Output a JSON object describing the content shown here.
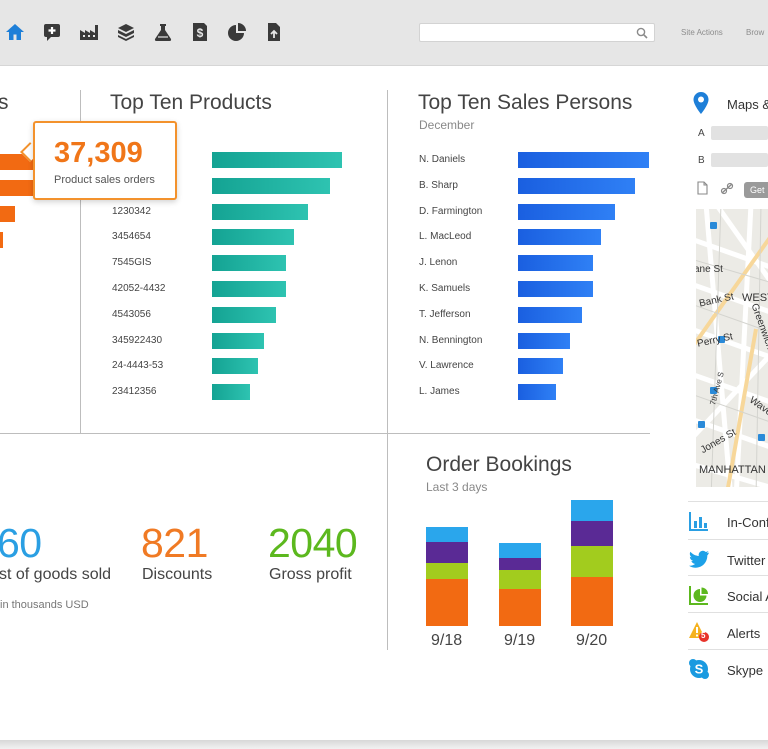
{
  "toolbar": {
    "icons": [
      "home-icon",
      "add-comment-icon",
      "factory-icon",
      "box-icon",
      "flask-icon",
      "dollar-doc-icon",
      "pie-chart-icon",
      "upload-doc-icon"
    ],
    "search_placeholder": "",
    "links": {
      "site_actions": "Site Actions",
      "browse": "Brow"
    },
    "colors": {
      "home_icon": "#1e7fd8",
      "icon": "#3a3a3a",
      "bar_bg": "#e6e6e6"
    }
  },
  "left_panel": {
    "title_fragment": "s",
    "callout": {
      "value": "37,309",
      "label": "Product sales orders"
    },
    "bars": [
      0.85,
      0.65,
      0.35,
      0.08
    ],
    "color": "#f26a12"
  },
  "top_products": {
    "title": "Top Ten Products",
    "rows": [
      {
        "label": "",
        "value": 100
      },
      {
        "label": "",
        "value": 91
      },
      {
        "label": "1230342",
        "value": 74
      },
      {
        "label": "3454654",
        "value": 63
      },
      {
        "label": "7545GIS",
        "value": 57
      },
      {
        "label": "42052-4432",
        "value": 57
      },
      {
        "label": "4543056",
        "value": 49
      },
      {
        "label": "345922430",
        "value": 40
      },
      {
        "label": "24-4443-53",
        "value": 35
      },
      {
        "label": "23412356",
        "value": 29
      }
    ]
  },
  "top_sales": {
    "title": "Top Ten Sales Persons",
    "subtitle": "December",
    "rows": [
      {
        "label": "N. Daniels",
        "value": 100
      },
      {
        "label": "B. Sharp",
        "value": 89
      },
      {
        "label": "D. Farmington",
        "value": 74
      },
      {
        "label": "L. MacLeod",
        "value": 63
      },
      {
        "label": "J. Lenon",
        "value": 57
      },
      {
        "label": "K. Samuels",
        "value": 57
      },
      {
        "label": "T. Jefferson",
        "value": 49
      },
      {
        "label": "N. Bennington",
        "value": 40
      },
      {
        "label": "V. Lawrence",
        "value": 34
      },
      {
        "label": "L. James",
        "value": 29
      }
    ]
  },
  "kpis": {
    "cost": {
      "value": "60",
      "label": "st of goods sold",
      "color": "#2a9fe3"
    },
    "discounts": {
      "value": "821",
      "label": "Discounts",
      "color": "#f07a24"
    },
    "gross_profit": {
      "value": "2040",
      "label": "Gross profit",
      "color": "#5cb81e"
    },
    "note": "in thousands USD"
  },
  "order_bookings": {
    "title": "Order Bookings",
    "subtitle": "Last 3 days",
    "columns": [
      {
        "label": "9/18",
        "segments": [
          47,
          16,
          21,
          15
        ]
      },
      {
        "label": "9/19",
        "segments": [
          37,
          19,
          12,
          15
        ]
      },
      {
        "label": "9/20",
        "segments": [
          49,
          31,
          25,
          21
        ]
      }
    ],
    "segment_colors": [
      "#f26a12",
      "#a2cc1e",
      "#5a2a95",
      "#2aa6ec"
    ]
  },
  "sidebar": {
    "maps_title": "Maps &",
    "field_a": "A",
    "field_b": "B",
    "get_button": "Get",
    "map_labels": [
      "ane St",
      "WEST",
      "Bank St",
      "Greenwich",
      "Perry St",
      "7th Ave S",
      "Jones St",
      "Wave",
      "MANHATTAN"
    ],
    "items": [
      {
        "label": "In-Conf",
        "icon": "bar-chart-icon"
      },
      {
        "label": "Twitter",
        "icon": "twitter-icon"
      },
      {
        "label": "Social A",
        "icon": "social-analytics-icon"
      },
      {
        "label": "Alerts",
        "icon": "alert-icon",
        "badge": "5"
      },
      {
        "label": "Skype",
        "icon": "skype-icon"
      }
    ]
  }
}
